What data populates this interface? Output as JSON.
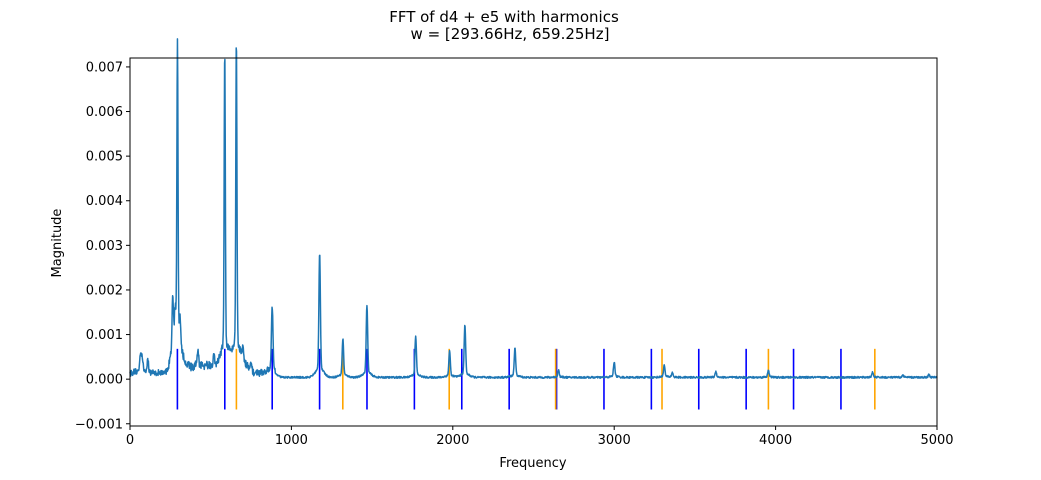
{
  "chart_data": {
    "type": "line",
    "title": "FFT of d4 + e5 with harmonics",
    "subtitle": "w = [293.66Hz, 659.25Hz]",
    "xlabel": "Frequency",
    "ylabel": "Magnitude",
    "xlim": [
      0,
      5000
    ],
    "ylim": [
      -0.00105,
      0.0072
    ],
    "xticks": [
      0,
      1000,
      2000,
      3000,
      4000,
      5000
    ],
    "xtick_labels": [
      "0",
      "1000",
      "2000",
      "3000",
      "4000",
      "5000"
    ],
    "yticks": [
      -0.001,
      0.0,
      0.001,
      0.002,
      0.003,
      0.004,
      0.005,
      0.006,
      0.007
    ],
    "ytick_labels": [
      "−0.001",
      "0.000",
      "0.001",
      "0.002",
      "0.003",
      "0.004",
      "0.005",
      "0.006",
      "0.007"
    ],
    "grid": false,
    "colors": {
      "spectrum": "#1f77b4",
      "harmonics_d4": "#0000ff",
      "harmonics_e5": "#ffa500"
    },
    "spectrum_peaks": [
      {
        "x": 65,
        "y": 0.0004
      },
      {
        "x": 75,
        "y": 0.0003
      },
      {
        "x": 110,
        "y": 0.00025
      },
      {
        "x": 265,
        "y": 0.00118
      },
      {
        "x": 280,
        "y": 0.0008
      },
      {
        "x": 294,
        "y": 0.00665
      },
      {
        "x": 310,
        "y": 0.0006
      },
      {
        "x": 420,
        "y": 0.00035
      },
      {
        "x": 520,
        "y": 0.00028
      },
      {
        "x": 587,
        "y": 0.0066
      },
      {
        "x": 659,
        "y": 0.00685
      },
      {
        "x": 700,
        "y": 0.0003
      },
      {
        "x": 881,
        "y": 0.0014
      },
      {
        "x": 1175,
        "y": 0.0026
      },
      {
        "x": 1319,
        "y": 0.0008
      },
      {
        "x": 1468,
        "y": 0.0015
      },
      {
        "x": 1770,
        "y": 0.00085
      },
      {
        "x": 1980,
        "y": 0.00055
      },
      {
        "x": 2075,
        "y": 0.0011
      },
      {
        "x": 2385,
        "y": 0.0006
      },
      {
        "x": 2655,
        "y": 0.00015
      },
      {
        "x": 3000,
        "y": 0.00032
      },
      {
        "x": 3310,
        "y": 0.00025
      },
      {
        "x": 3360,
        "y": 0.0001
      },
      {
        "x": 3630,
        "y": 0.00012
      },
      {
        "x": 3955,
        "y": 0.00015
      },
      {
        "x": 4600,
        "y": 0.0001
      },
      {
        "x": 4790,
        "y": 5e-05
      },
      {
        "x": 4950,
        "y": 6e-05
      }
    ],
    "harmonic_line_range": [
      -0.00068,
      0.00068
    ],
    "harmonics_d4": [
      293.66,
      587.32,
      880.98,
      1174.64,
      1468.3,
      1761.96,
      2055.62,
      2349.28,
      2642.94,
      2936.6,
      3230.26,
      3523.92,
      3817.58,
      4111.24,
      4404.9
    ],
    "harmonics_e5": [
      659.25,
      1318.5,
      1977.75,
      2637.0,
      3296.25,
      3955.5,
      4614.75
    ]
  }
}
